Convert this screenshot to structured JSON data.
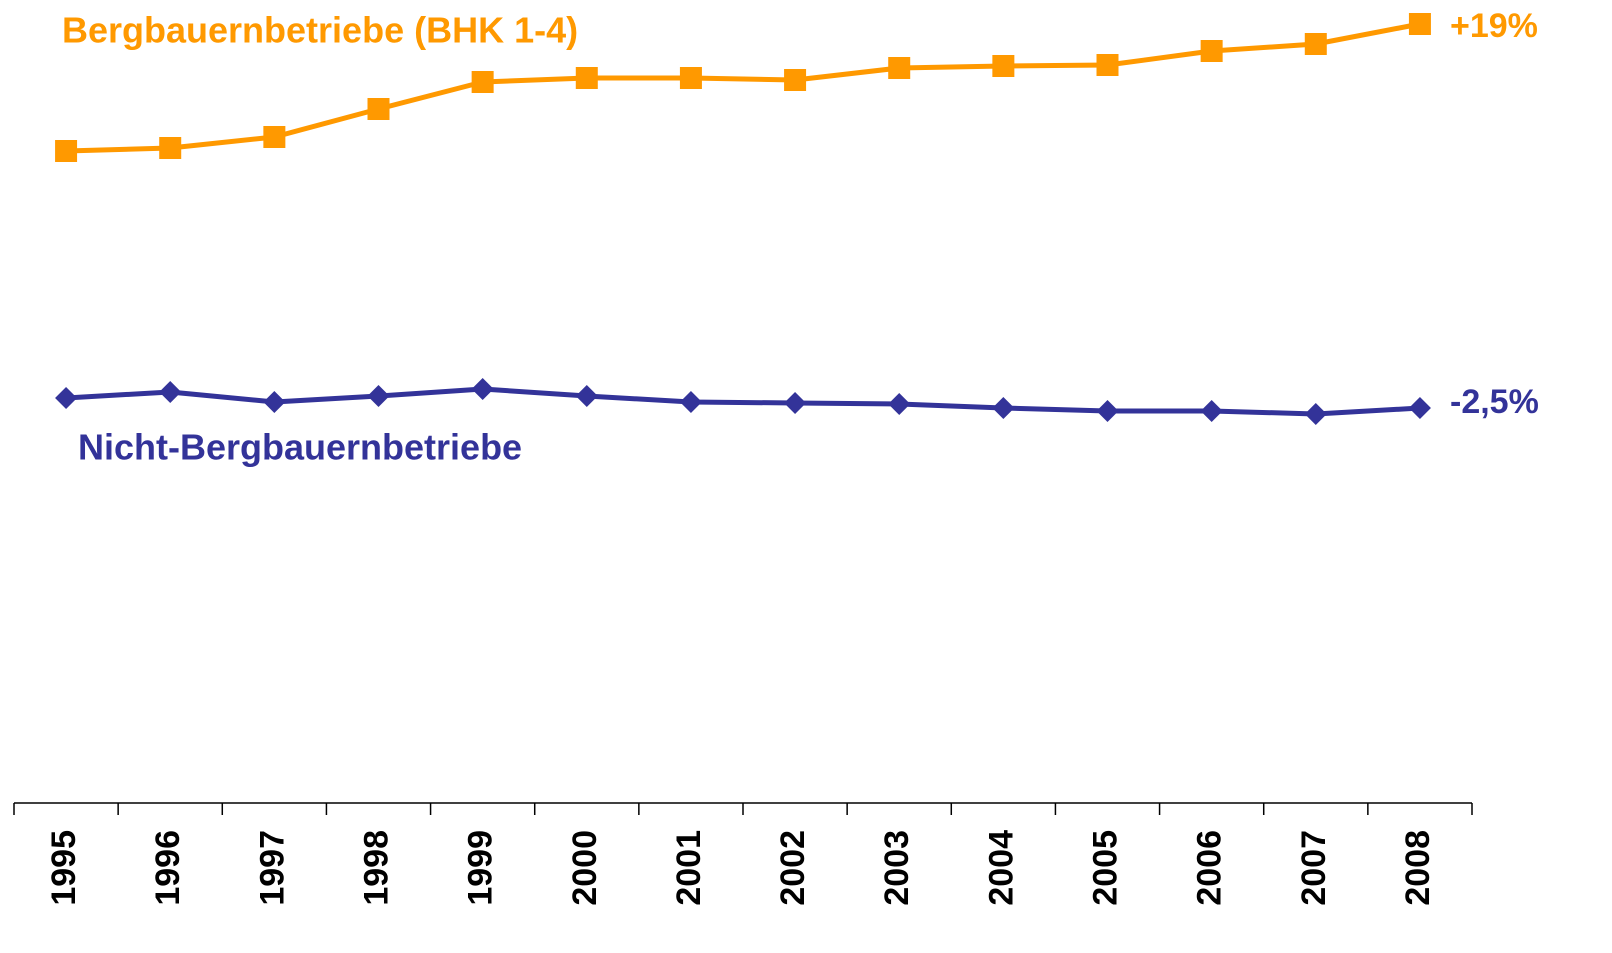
{
  "chart_data": {
    "type": "line",
    "categories": [
      "1995",
      "1996",
      "1997",
      "1998",
      "1999",
      "2000",
      "2001",
      "2002",
      "2003",
      "2004",
      "2005",
      "2006",
      "2007",
      "2008"
    ],
    "series": [
      {
        "name": "Bergbauernbetriebe (BHK 1-4)",
        "color": "#FF9900",
        "marker": "square",
        "change_label": "+19%",
        "values": [
          652,
          655,
          666,
          694,
          721,
          725,
          725,
          723,
          735,
          737,
          738,
          752,
          759,
          779
        ]
      },
      {
        "name": "Nicht-Bergbauernbetriebe",
        "color": "#333399",
        "marker": "diamond",
        "change_label": "-2,5%",
        "values": [
          405,
          411,
          401,
          407,
          414,
          407,
          401,
          400,
          399,
          395,
          392,
          392,
          389,
          395
        ]
      }
    ],
    "ylim": [
      0,
      803
    ]
  }
}
